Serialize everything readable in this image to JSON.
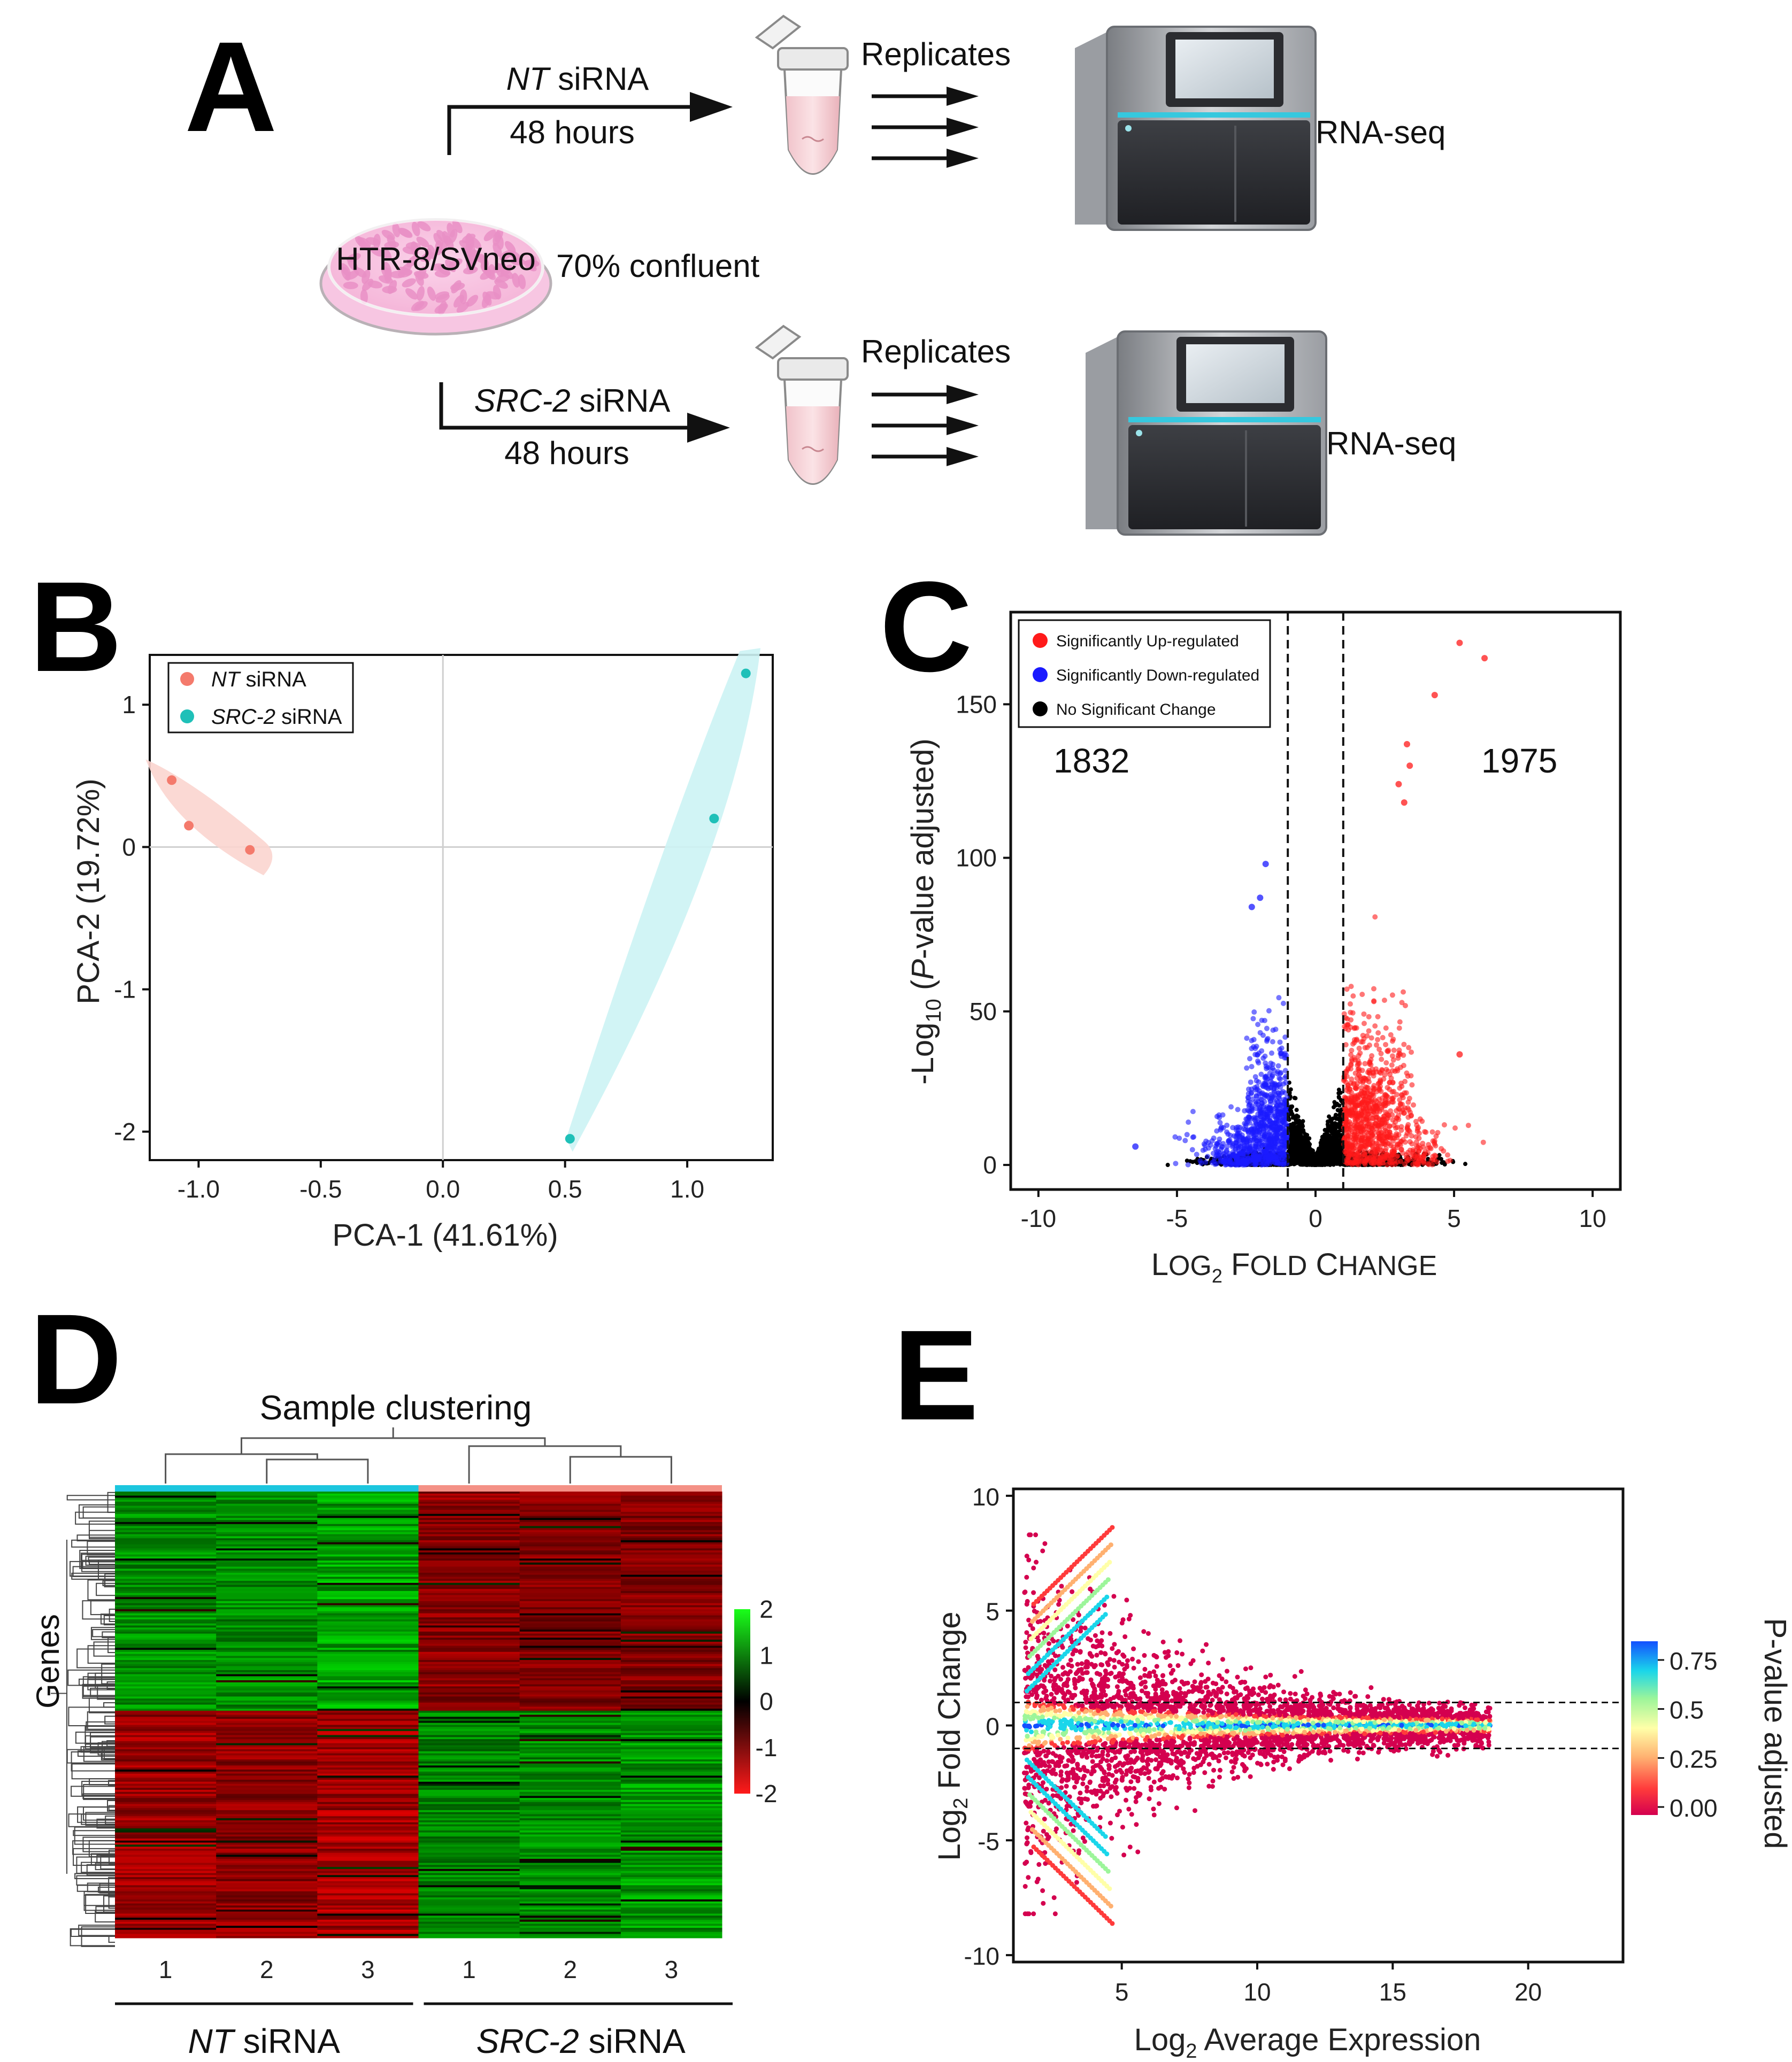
{
  "figure": {
    "panels": {
      "a": "A",
      "b": "B",
      "c": "C",
      "d": "D",
      "e": "E"
    }
  },
  "panel_a": {
    "cell_line": "HTR-8/SVneo",
    "confluence": "70% confluent",
    "top_treatment_gene": "NT",
    "bottom_treatment_gene": "SRC-2",
    "treatment_suffix": " siRNA",
    "duration": "48 hours",
    "replicates": "Replicates",
    "sequencing": "RNA-seq",
    "colors": {
      "dish": "#e98fc6",
      "tube_fill": "#f6c9cf"
    }
  },
  "chart_data": [
    {
      "id": "B",
      "type": "scatter",
      "title": "",
      "xlabel": "PCA-1 (41.61%)",
      "ylabel": "PCA-2 (19.72%)",
      "xlim": [
        -1.2,
        1.35
      ],
      "ylim": [
        -2.2,
        1.35
      ],
      "xticks": [
        -1.0,
        -0.5,
        0.0,
        0.5,
        1.0
      ],
      "xtick_labels": [
        "-1.0",
        "-0.5",
        "0.0",
        "0.5",
        "1.0"
      ],
      "yticks": [
        -2,
        -1,
        0,
        1
      ],
      "ytick_labels": [
        "-2",
        "-1",
        "0",
        "1"
      ],
      "legend_position": "top-left",
      "series": [
        {
          "name_italic": "NT",
          "name_rest": " siRNA",
          "color": "#f47a6c",
          "hull_color": "#fbd5d0",
          "points": [
            [
              -1.11,
              0.47
            ],
            [
              -1.04,
              0.15
            ],
            [
              -0.79,
              -0.02
            ]
          ]
        },
        {
          "name_italic": "SRC-2",
          "name_rest": " siRNA",
          "color": "#1fc0b8",
          "hull_color": "#cdf3f4",
          "points": [
            [
              1.24,
              1.22
            ],
            [
              1.11,
              0.2
            ],
            [
              0.52,
              -2.05
            ]
          ]
        }
      ]
    },
    {
      "id": "C",
      "type": "scatter",
      "title": "",
      "xlabel": "Log2 Fold Change",
      "ylabel": "-Log10 (P-value adjusted)",
      "xlim": [
        -11,
        11
      ],
      "ylim": [
        -8,
        180
      ],
      "xticks": [
        -10,
        -5,
        0,
        5,
        10
      ],
      "xtick_labels": [
        "-10",
        "-5",
        "0",
        "5",
        "10"
      ],
      "yticks": [
        0,
        50,
        100,
        150
      ],
      "ytick_labels": [
        "0",
        "50",
        "100",
        "150"
      ],
      "thresholds_x": [
        -1,
        1
      ],
      "legend_position": "top-left",
      "legend": [
        {
          "label": "Significantly Up-regulated",
          "color": "#ff1a1a"
        },
        {
          "label": "Significantly Down-regulated",
          "color": "#1a1aff"
        },
        {
          "label": "No Significant Change",
          "color": "#000000"
        }
      ],
      "annotations": {
        "down_count": "1832",
        "up_count": "1975",
        "down_color": "#1414e6",
        "up_color": "#e01414"
      },
      "highlight_points": [
        [
          5.2,
          170
        ],
        [
          6.1,
          165
        ],
        [
          4.3,
          153
        ],
        [
          3.3,
          137
        ],
        [
          3.4,
          130
        ],
        [
          3.0,
          124
        ],
        [
          3.2,
          118
        ],
        [
          -1.8,
          98
        ],
        [
          -2.0,
          87
        ],
        [
          -2.3,
          84
        ],
        [
          5.2,
          36
        ],
        [
          -6.5,
          6
        ]
      ]
    },
    {
      "id": "D",
      "type": "heatmap",
      "title": "Sample clustering",
      "ylabel": "Genes",
      "column_labels": [
        "1",
        "2",
        "3",
        "1",
        "2",
        "3"
      ],
      "groups": [
        {
          "label_italic": "NT",
          "label_rest": " siRNA",
          "color": "#1cc6de"
        },
        {
          "label_italic": "SRC-2",
          "label_rest": " siRNA",
          "color": "#f49186"
        }
      ],
      "colorbar_ticks": [
        "2",
        "1",
        "0",
        "-1",
        "-2"
      ],
      "colorbar_range": [
        -2,
        2
      ],
      "block_pattern": [
        [
          1.3,
          1.3,
          1.5,
          -1.3,
          -1.2,
          -1.2
        ],
        [
          -1.4,
          -1.3,
          -1.5,
          1.2,
          1.3,
          1.4
        ]
      ]
    },
    {
      "id": "E",
      "type": "scatter",
      "title": "",
      "xlabel": "Log2 Average Expression",
      "ylabel": "Log2 Fold Change",
      "xlim": [
        1,
        23.5
      ],
      "ylim": [
        -10.3,
        10.3
      ],
      "xticks": [
        5,
        10,
        15,
        20
      ],
      "xtick_labels": [
        "5",
        "10",
        "15",
        "20"
      ],
      "yticks": [
        10,
        5,
        0,
        -5,
        -10
      ],
      "ytick_labels": [
        "10",
        "5",
        "0",
        "-5",
        "-10"
      ],
      "thresholds_y": [
        1,
        -1
      ],
      "colorbar_title": "P-value adjusted",
      "colorbar_ticks": [
        "0.75",
        "0.5",
        "0.25",
        "0.00"
      ],
      "colorbar_range": [
        0,
        0.9
      ]
    }
  ]
}
